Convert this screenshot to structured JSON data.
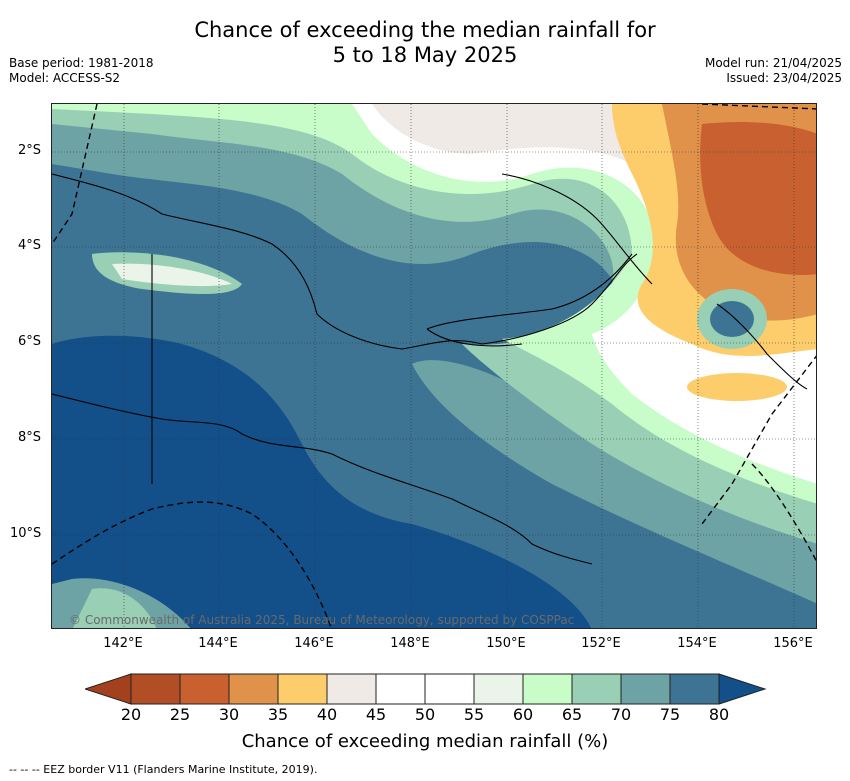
{
  "title": {
    "line1": "Chance of exceeding the median rainfall for",
    "line2": "5 to 18 May 2025"
  },
  "meta": {
    "base_period": "Base period: 1981-2018",
    "model": "Model: ACCESS-S2",
    "model_run": "Model run: 21/04/2025",
    "issued": "Issued: 23/04/2025"
  },
  "map": {
    "region": "Papua New Guinea",
    "lat_labels": [
      "2°S",
      "4°S",
      "6°S",
      "8°S",
      "10°S"
    ],
    "lon_labels": [
      "142°E",
      "144°E",
      "146°E",
      "148°E",
      "150°E",
      "152°E",
      "154°E",
      "156°E"
    ],
    "credit": "© Commonwealth of Australia 2025, Bureau of Meteorology, supported by COSPPac"
  },
  "colorbar": {
    "label": "Chance of exceeding median rainfall (%)",
    "ticks": [
      "20",
      "25",
      "30",
      "35",
      "40",
      "45",
      "50",
      "55",
      "60",
      "65",
      "70",
      "75",
      "80"
    ],
    "colors": [
      "#a3411f",
      "#b24e26",
      "#c8612f",
      "#e0914a",
      "#fdcd6c",
      "#efeae6",
      "#ffffff",
      "#ffffff",
      "#ebf4e8",
      "#c8fcc8",
      "#99cfb5",
      "#6ea3a5",
      "#3e7493",
      "#134f89"
    ]
  },
  "footer": {
    "legend": "--  --  -- EEZ border V11 (Flanders Marine Institute, 2019)."
  }
}
